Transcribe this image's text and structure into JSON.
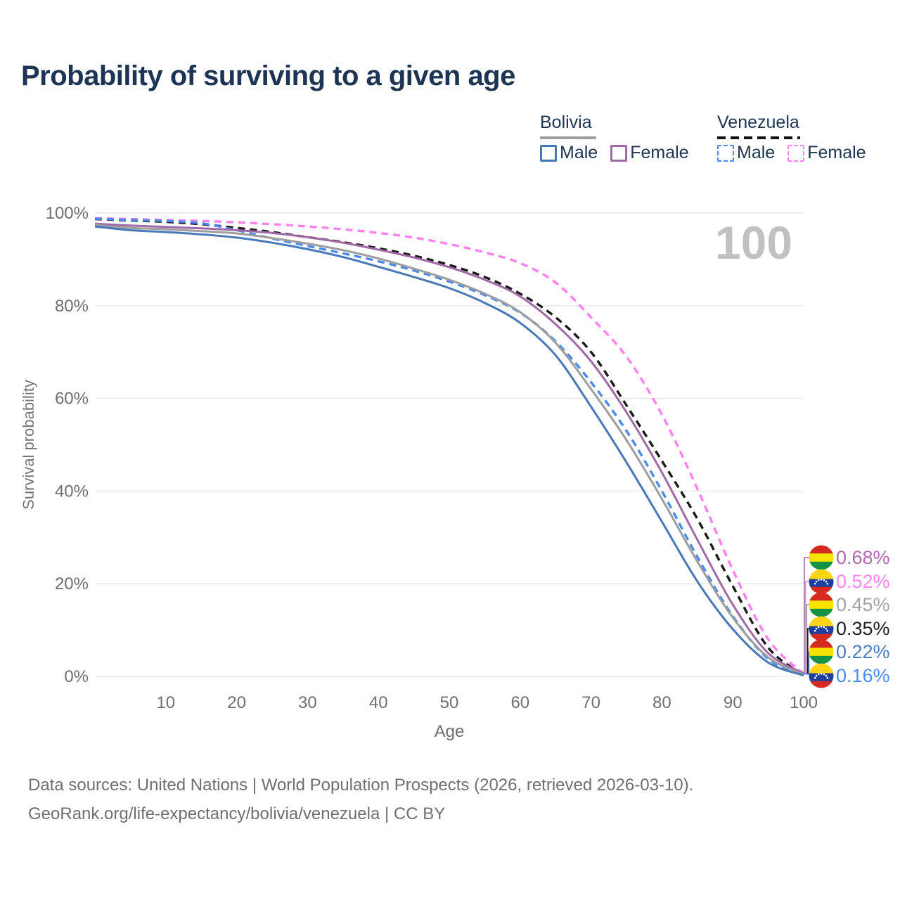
{
  "title": "Probability of surviving to a given age",
  "watermark": "100",
  "legend": {
    "groups": [
      {
        "label": "Bolivia",
        "line_style": "solid",
        "underline_color": "#9e9e9e",
        "items": [
          {
            "label": "Male",
            "color": "#4878b8",
            "dashed": false
          },
          {
            "label": "Female",
            "color": "#a269a8",
            "dashed": false
          }
        ]
      },
      {
        "label": "Venezuela",
        "line_style": "dashed",
        "underline_color": "#111111",
        "items": [
          {
            "label": "Male",
            "color": "#4b8bf0",
            "dashed": true
          },
          {
            "label": "Female",
            "color": "#ff80f0",
            "dashed": true
          }
        ]
      }
    ]
  },
  "chart_data": {
    "type": "line",
    "title": "Probability of surviving to a given age",
    "xlabel": "Age",
    "ylabel": "Survival probability",
    "xlim": [
      0,
      100
    ],
    "ylim": [
      0,
      100
    ],
    "x_ticks": [
      10,
      20,
      30,
      40,
      50,
      60,
      70,
      80,
      90,
      100
    ],
    "y_ticks": [
      0,
      20,
      40,
      60,
      80,
      100
    ],
    "y_tick_suffix": "%",
    "grid": "horizontal",
    "x": [
      0,
      5,
      10,
      15,
      20,
      25,
      30,
      35,
      40,
      45,
      50,
      55,
      60,
      65,
      70,
      75,
      80,
      85,
      90,
      95,
      100
    ],
    "series": [
      {
        "name": "Venezuela Female",
        "color": "#ff80f0",
        "dashed": true,
        "values": [
          98.9,
          98.7,
          98.5,
          98.3,
          98.0,
          97.6,
          97.1,
          96.5,
          95.7,
          94.7,
          93.3,
          91.5,
          89.2,
          85.0,
          77.5,
          69.0,
          56.5,
          40.5,
          23.0,
          8.0,
          0.52
        ]
      },
      {
        "name": "Venezuela All",
        "color": "#1a1a1a",
        "dashed": true,
        "values": [
          98.7,
          98.4,
          98.1,
          97.6,
          96.8,
          95.9,
          94.8,
          93.7,
          92.4,
          90.8,
          88.8,
          86.2,
          82.6,
          77.5,
          70.0,
          58.5,
          46.5,
          34.0,
          19.5,
          6.2,
          0.35
        ]
      },
      {
        "name": "Venezuela Male",
        "color": "#4b8bf0",
        "dashed": true,
        "values": [
          98.8,
          98.5,
          98.3,
          97.8,
          96.3,
          94.5,
          92.9,
          91.3,
          89.6,
          87.6,
          85.2,
          82.3,
          78.5,
          72.3,
          63.5,
          53.0,
          40.0,
          25.8,
          13.0,
          3.8,
          0.16
        ]
      },
      {
        "name": "Bolivia Female",
        "color": "#a269a8",
        "dashed": false,
        "values": [
          97.7,
          97.3,
          97.0,
          96.7,
          96.3,
          95.7,
          94.8,
          93.6,
          92.1,
          90.4,
          88.3,
          85.6,
          82.0,
          76.0,
          68.0,
          57.0,
          44.0,
          29.5,
          15.5,
          5.0,
          0.68
        ]
      },
      {
        "name": "Bolivia All",
        "color": "#9e9e9e",
        "dashed": false,
        "values": [
          97.4,
          96.8,
          96.5,
          96.1,
          95.6,
          94.6,
          93.4,
          92.0,
          90.2,
          88.0,
          85.6,
          82.6,
          78.6,
          72.0,
          62.0,
          51.0,
          38.3,
          24.8,
          12.7,
          4.1,
          0.45
        ]
      },
      {
        "name": "Bolivia Male",
        "color": "#4878b8",
        "dashed": false,
        "values": [
          97.1,
          96.3,
          95.9,
          95.4,
          94.7,
          93.6,
          92.2,
          90.5,
          88.4,
          86.2,
          83.8,
          80.6,
          76.3,
          69.3,
          58.2,
          46.2,
          33.4,
          20.5,
          10.2,
          3.0,
          0.22
        ]
      }
    ],
    "end_labels": [
      {
        "text": "0.68%",
        "series": "Bolivia Female",
        "flag": "bolivia",
        "color": "#b168ae"
      },
      {
        "text": "0.52%",
        "series": "Venezuela Female",
        "flag": "venezuela",
        "color": "#ff85ee"
      },
      {
        "text": "0.45%",
        "series": "Bolivia All",
        "flag": "bolivia",
        "color": "#a3a3a3"
      },
      {
        "text": "0.35%",
        "series": "Venezuela All",
        "flag": "venezuela",
        "color": "#222222"
      },
      {
        "text": "0.22%",
        "series": "Bolivia Male",
        "flag": "bolivia",
        "color": "#4a7bc4"
      },
      {
        "text": "0.16%",
        "series": "Venezuela Male",
        "flag": "venezuela",
        "color": "#4b8bf5"
      }
    ],
    "flag_colors": {
      "bolivia": [
        "#d52b1e",
        "#f4e400",
        "#159243"
      ],
      "venezuela": [
        "#ffd417",
        "#1b3fa0",
        "#d42a20"
      ]
    }
  },
  "footer": {
    "line1": "Data sources: United Nations | World Population Prospects (2026, retrieved 2026-03-10).",
    "line2": "GeoRank.org/life-expectancy/bolivia/venezuela | CC BY"
  }
}
